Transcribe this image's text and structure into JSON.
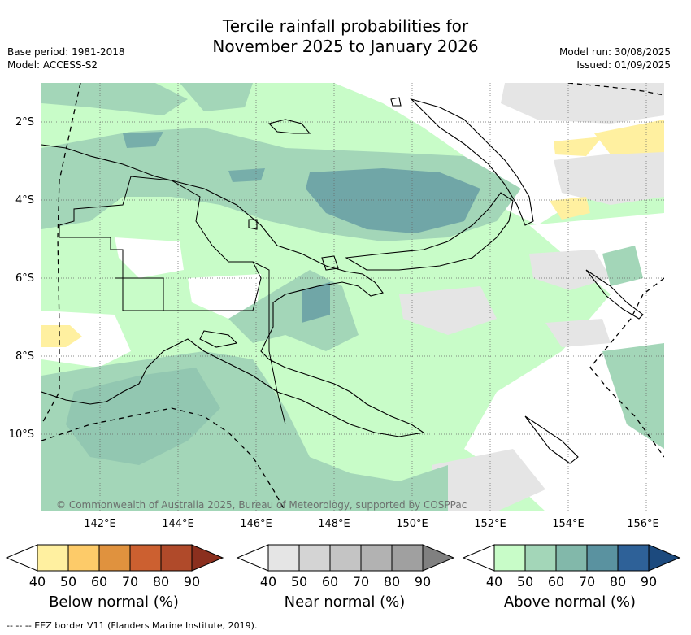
{
  "title_line1": "Tercile rainfall probabilities for",
  "title_line2": "November 2025 to January 2026",
  "base_period": "Base period: 1981-2018",
  "model": "Model: ACCESS-S2",
  "model_run": "Model run: 30/08/2025",
  "issued": "Issued: 01/09/2025",
  "credit": "© Commonwealth of Australia 2025, Bureau of Meteorology, supported by COSPPac",
  "lat_labels": [
    "2°S",
    "4°S",
    "6°S",
    "8°S",
    "10°S"
  ],
  "lon_labels": [
    "142°E",
    "144°E",
    "146°E",
    "148°E",
    "150°E",
    "152°E",
    "154°E",
    "156°E"
  ],
  "colorbars": [
    {
      "title": "Below normal (%)",
      "ticks": [
        "40",
        "50",
        "60",
        "70",
        "80",
        "90"
      ],
      "colors": [
        "#ffffff",
        "#fff0a0",
        "#fdcb69",
        "#e0923e",
        "#cc6030",
        "#b04a2a",
        "#8b2f1e"
      ]
    },
    {
      "title": "Near normal (%)",
      "ticks": [
        "40",
        "50",
        "60",
        "70",
        "80",
        "90"
      ],
      "colors": [
        "#ffffff",
        "#e5e5e5",
        "#d4d4d4",
        "#c4c4c4",
        "#b2b2b2",
        "#a0a0a0",
        "#808080"
      ]
    },
    {
      "title": "Above normal (%)",
      "ticks": [
        "40",
        "50",
        "60",
        "70",
        "80",
        "90"
      ],
      "colors": [
        "#ffffff",
        "#c8fcc8",
        "#a3d6b8",
        "#82b8aa",
        "#5a92a0",
        "#2e6198",
        "#1c4a7e"
      ]
    }
  ],
  "footer": "--  --  -- EEZ border V11 (Flanders Marine Institute, 2019)."
}
